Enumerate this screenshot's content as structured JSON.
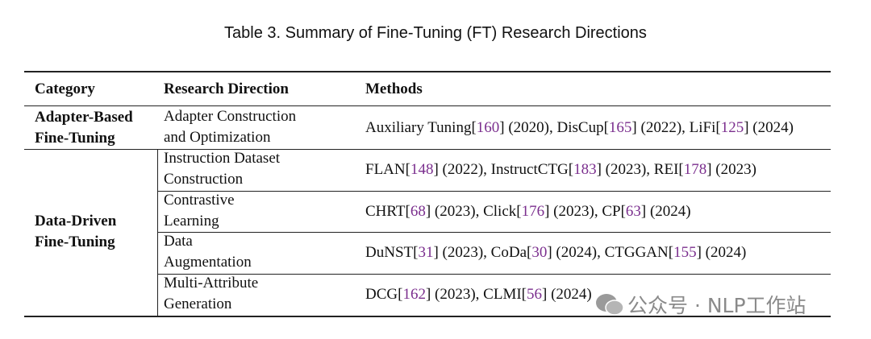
{
  "title": "Table 3.  Summary of Fine-Tuning (FT) Research Directions",
  "table": {
    "headers": [
      "Category",
      "Research Direction",
      "Methods"
    ],
    "groups": [
      {
        "category": [
          "Adapter-Based",
          "Fine-Tuning"
        ],
        "rows": [
          {
            "direction": [
              "Adapter Construction",
              "and Optimization"
            ],
            "methods": [
              "Auxiliary Tuning[",
              "160",
              "] (2020), DisCup[",
              "165",
              "] (2022), LiFi[",
              "125",
              "] (2024)"
            ]
          }
        ]
      },
      {
        "category": [
          "Data-Driven",
          "Fine-Tuning"
        ],
        "rows": [
          {
            "direction": [
              "Instruction Dataset",
              "Construction"
            ],
            "methods": [
              "FLAN[",
              "148",
              "] (2022), InstructCTG[",
              "183",
              "] (2023), REI[",
              "178",
              "] (2023)"
            ]
          },
          {
            "direction": [
              "Contrastive",
              "Learning"
            ],
            "methods": [
              "CHRT[",
              "68",
              "] (2023), Click[",
              "176",
              "] (2023), CP[",
              "63",
              "] (2024)"
            ]
          },
          {
            "direction": [
              "Data",
              "Augmentation"
            ],
            "methods": [
              "DuNST[",
              "31",
              "] (2023), CoDa[",
              "30",
              "] (2024), CTGGAN[",
              "155",
              "] (2024)"
            ]
          },
          {
            "direction": [
              "Multi-Attribute",
              "Generation"
            ],
            "methods": [
              "DCG[",
              "162",
              "] (2023), CLMI[",
              "56",
              "] (2024)"
            ]
          }
        ]
      }
    ]
  },
  "watermark": "公众号 · NLP工作站"
}
